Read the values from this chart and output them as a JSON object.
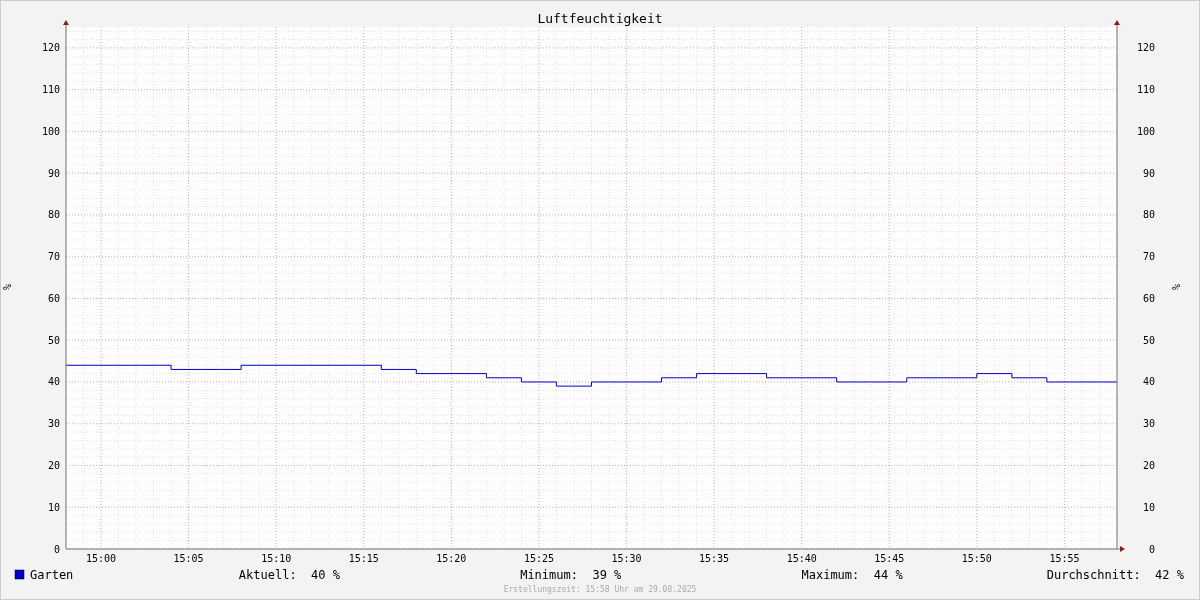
{
  "chart_data": {
    "type": "step",
    "title": "Luftfeuchtigkeit",
    "ylabel": "%",
    "y2label": "%",
    "x": [
      14.9667,
      15.0667,
      15.1333,
      15.2667,
      15.3,
      15.3667,
      15.4,
      15.4333,
      15.4667,
      15.5333,
      15.5667,
      15.6333,
      15.7,
      15.7667,
      15.8333,
      15.8667,
      15.9,
      15.9667
    ],
    "series": [
      {
        "name": "Garten",
        "color": "#0000cc",
        "values": [
          44,
          43,
          44,
          43,
          42,
          41,
          40,
          39,
          40,
          41,
          42,
          41,
          40,
          41,
          42,
          41,
          40,
          40
        ]
      }
    ],
    "xlim": [
      14.9667,
      15.9667
    ],
    "xticks": [
      {
        "value": 15,
        "label": "15:00"
      },
      {
        "value": 15.0833,
        "label": "15:05"
      },
      {
        "value": 15.1667,
        "label": "15:10"
      },
      {
        "value": 15.25,
        "label": "15:15"
      },
      {
        "value": 15.3333,
        "label": "15:20"
      },
      {
        "value": 15.4167,
        "label": "15:25"
      },
      {
        "value": 15.5,
        "label": "15:30"
      },
      {
        "value": 15.5833,
        "label": "15:35"
      },
      {
        "value": 15.6667,
        "label": "15:40"
      },
      {
        "value": 15.75,
        "label": "15:45"
      },
      {
        "value": 15.8333,
        "label": "15:50"
      },
      {
        "value": 15.9167,
        "label": "15:55"
      }
    ],
    "ylim": [
      0,
      125
    ],
    "yticks": [
      0,
      10,
      20,
      30,
      40,
      50,
      60,
      70,
      80,
      90,
      100,
      110,
      120
    ],
    "y2lim": [
      0,
      125
    ],
    "y2ticks": [
      0,
      10,
      20,
      30,
      40,
      50,
      60,
      70,
      80,
      90,
      100,
      110,
      120
    ],
    "grid": true,
    "legend": "bottom left",
    "annotations": [
      "Aktuell:  40 %",
      "Minimum:  39 %",
      "Maximum:  44 %",
      "Durchschnitt:  42 %",
      "Erstellungszeit: 15:58 Uhr am 29.08.2025"
    ]
  }
}
